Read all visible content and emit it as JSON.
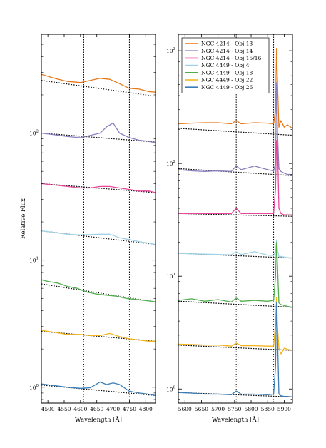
{
  "chart_data": [
    {
      "type": "line",
      "xlabel": "Wavelength [Å]",
      "ylabel": "Relative Flux",
      "xlim": [
        4480,
        4830
      ],
      "ylim": [
        0.75,
        600
      ],
      "yscale": "log",
      "grid": false,
      "xticks": [
        4500,
        4550,
        4600,
        4650,
        4700,
        4750,
        4800
      ],
      "yticks": [
        {
          "value": 1,
          "label": "10^0"
        },
        {
          "value": 10,
          "label": "10^1"
        },
        {
          "value": 100,
          "label": "10^2"
        }
      ],
      "vlines": [
        4610,
        4750
      ],
      "series": [
        {
          "color": "#e5791a",
          "x": [
            4480,
            4520,
            4560,
            4600,
            4630,
            4660,
            4690,
            4720,
            4750,
            4780,
            4810,
            4830
          ],
          "y": [
            290,
            270,
            255,
            250,
            260,
            270,
            265,
            245,
            225,
            222,
            212,
            210
          ],
          "continuum": [
            [
              4480,
              260
            ],
            [
              4830,
              195
            ]
          ]
        },
        {
          "color": "#8c7fbf",
          "x": [
            4480,
            4520,
            4560,
            4600,
            4630,
            4660,
            4680,
            4700,
            4720,
            4750,
            4780,
            4810,
            4830
          ],
          "y": [
            100,
            97,
            94,
            92,
            96,
            100,
            112,
            120,
            100,
            92,
            88,
            86,
            84
          ],
          "continuum": [
            [
              4480,
              100
            ],
            [
              4830,
              85
            ]
          ]
        },
        {
          "color": "#e8479b",
          "x": [
            4480,
            4520,
            4560,
            4600,
            4630,
            4660,
            4690,
            4720,
            4750,
            4780,
            4810,
            4830
          ],
          "y": [
            40,
            39,
            38,
            37,
            37,
            38,
            38,
            37,
            36,
            35,
            35,
            34
          ],
          "continuum": [
            [
              4480,
              40
            ],
            [
              4830,
              34
            ]
          ]
        },
        {
          "color": "#9fd2e6",
          "x": [
            4480,
            4520,
            4560,
            4600,
            4630,
            4660,
            4690,
            4720,
            4750,
            4780,
            4810,
            4830
          ],
          "y": [
            17,
            16.5,
            16,
            15.8,
            15.9,
            16,
            16,
            15,
            14.5,
            14,
            13.6,
            13.3
          ],
          "continuum": [
            [
              4480,
              17
            ],
            [
              4830,
              13.3
            ]
          ]
        },
        {
          "color": "#4fae4c",
          "x": [
            4480,
            4500,
            4530,
            4560,
            4590,
            4620,
            4650,
            4680,
            4710,
            4740,
            4770,
            4800,
            4830
          ],
          "y": [
            7,
            6.8,
            6.6,
            6.2,
            6.0,
            5.6,
            5.4,
            5.3,
            5.2,
            5.0,
            4.9,
            4.8,
            4.7
          ],
          "continuum": [
            [
              4480,
              6.5
            ],
            [
              4830,
              4.7
            ]
          ]
        },
        {
          "color": "#f2b418",
          "x": [
            4480,
            4520,
            4560,
            4600,
            4630,
            4660,
            4690,
            4720,
            4750,
            4780,
            4810,
            4830
          ],
          "y": [
            2.8,
            2.7,
            2.6,
            2.6,
            2.55,
            2.55,
            2.65,
            2.5,
            2.4,
            2.35,
            2.3,
            2.3
          ],
          "continuum": [
            [
              4480,
              2.75
            ],
            [
              4830,
              2.3
            ]
          ]
        },
        {
          "color": "#3a7db8",
          "x": [
            4480,
            4520,
            4560,
            4600,
            4630,
            4660,
            4680,
            4700,
            4720,
            4750,
            4780,
            4810,
            4830
          ],
          "y": [
            1.06,
            1.03,
            1.0,
            0.98,
            0.99,
            1.1,
            1.05,
            1.08,
            1.05,
            0.93,
            0.9,
            0.88,
            0.86
          ],
          "continuum": [
            [
              4480,
              1.04
            ],
            [
              4830,
              0.86
            ]
          ]
        }
      ]
    },
    {
      "type": "line",
      "xlabel": "Wavelength [Å]",
      "xlim": [
        5580,
        5925
      ],
      "ylim": [
        0.75,
        1400
      ],
      "yscale": "log",
      "grid": false,
      "xticks": [
        5600,
        5650,
        5700,
        5750,
        5800,
        5850,
        5900
      ],
      "yticks": [
        {
          "value": 1,
          "label": "10^0"
        },
        {
          "value": 10,
          "label": "10^1"
        },
        {
          "value": 100,
          "label": "10^2"
        },
        {
          "value": 1000,
          "label": "10^3"
        }
      ],
      "vlines": [
        5755,
        5868
      ],
      "legend": {
        "placement": "top-left"
      },
      "series": [
        {
          "name": "NGC 4214 - Obj 13",
          "color": "#e5791a",
          "x": [
            5580,
            5620,
            5660,
            5700,
            5740,
            5755,
            5770,
            5810,
            5850,
            5868,
            5874,
            5877,
            5880,
            5884,
            5890,
            5900,
            5910,
            5925
          ],
          "y": [
            225,
            228,
            230,
            230,
            225,
            240,
            225,
            230,
            228,
            225,
            300,
            1050,
            500,
            210,
            240,
            210,
            220,
            205
          ],
          "continuum": [
            [
              5580,
              205
            ],
            [
              5925,
              178
            ]
          ]
        },
        {
          "name": "NGC 4214 - Obj 14",
          "color": "#8c7fbf",
          "x": [
            5580,
            5620,
            5660,
            5700,
            5740,
            5755,
            5770,
            5810,
            5850,
            5868,
            5874,
            5877,
            5880,
            5884,
            5890,
            5900,
            5910,
            5925
          ],
          "y": [
            88,
            86,
            85,
            86,
            85,
            95,
            88,
            95,
            88,
            86,
            100,
            520,
            180,
            90,
            85,
            82,
            80,
            80
          ],
          "continuum": [
            [
              5580,
              90
            ],
            [
              5925,
              78
            ]
          ]
        },
        {
          "name": "NGC 4214 - Obj 15/16",
          "color": "#e8479b",
          "x": [
            5580,
            5620,
            5660,
            5700,
            5740,
            5755,
            5770,
            5810,
            5850,
            5868,
            5874,
            5877,
            5880,
            5884,
            5890,
            5900,
            5910,
            5925
          ],
          "y": [
            36,
            36,
            36,
            36,
            36,
            40,
            36,
            36,
            36,
            36,
            60,
            160,
            140,
            40,
            36,
            35,
            35,
            35
          ],
          "continuum": [
            [
              5580,
              36
            ],
            [
              5925,
              34
            ]
          ]
        },
        {
          "name": "NGC 4449 - Obj 4",
          "color": "#9fd2e6",
          "x": [
            5580,
            5620,
            5660,
            5700,
            5740,
            5755,
            5770,
            5810,
            5850,
            5868,
            5874,
            5877,
            5880,
            5884,
            5890,
            5900,
            5910,
            5925
          ],
          "y": [
            16,
            15.8,
            15.7,
            15.6,
            15.5,
            16.5,
            15.6,
            16.5,
            15.4,
            15.3,
            16.5,
            21,
            17,
            15,
            15,
            14.8,
            14.6,
            14.5
          ],
          "continuum": [
            [
              5580,
              16
            ],
            [
              5925,
              14.5
            ]
          ]
        },
        {
          "name": "NGC 4449 - Obj 18",
          "color": "#4fae4c",
          "x": [
            5580,
            5620,
            5660,
            5700,
            5740,
            5755,
            5770,
            5810,
            5850,
            5868,
            5874,
            5877,
            5880,
            5884,
            5890,
            5900,
            5910,
            5925
          ],
          "y": [
            6.1,
            6.3,
            6.0,
            6.2,
            5.9,
            6.4,
            6.0,
            6.1,
            6.0,
            6.1,
            10,
            20,
            12,
            5.8,
            5.6,
            5.5,
            5.4,
            5.3
          ],
          "continuum": [
            [
              5580,
              6.0
            ],
            [
              5925,
              5.3
            ]
          ]
        },
        {
          "name": "NGC 4449 - Obj 22",
          "color": "#f2b418",
          "x": [
            5580,
            5620,
            5660,
            5700,
            5740,
            5755,
            5770,
            5810,
            5850,
            5868,
            5874,
            5877,
            5880,
            5884,
            5890,
            5900,
            5910,
            5925
          ],
          "y": [
            2.5,
            2.48,
            2.45,
            2.45,
            2.4,
            2.55,
            2.42,
            2.42,
            2.4,
            2.4,
            3.8,
            6.5,
            3.5,
            2.3,
            2.05,
            2.3,
            2.25,
            2.2
          ],
          "continuum": [
            [
              5580,
              2.45
            ],
            [
              5925,
              2.2
            ]
          ]
        },
        {
          "name": "NGC 4449 - Obj 26",
          "color": "#3a7db8",
          "x": [
            5580,
            5620,
            5660,
            5700,
            5740,
            5755,
            5770,
            5810,
            5850,
            5868,
            5874,
            5877,
            5880,
            5884,
            5890,
            5900,
            5910,
            5925
          ],
          "y": [
            0.93,
            0.92,
            0.9,
            0.9,
            0.89,
            0.96,
            0.9,
            0.9,
            0.89,
            0.9,
            1.6,
            5.8,
            2.8,
            0.9,
            0.87,
            0.86,
            0.86,
            0.85
          ],
          "continuum": [
            [
              5580,
              0.93
            ],
            [
              5925,
              0.85
            ]
          ]
        }
      ]
    }
  ]
}
